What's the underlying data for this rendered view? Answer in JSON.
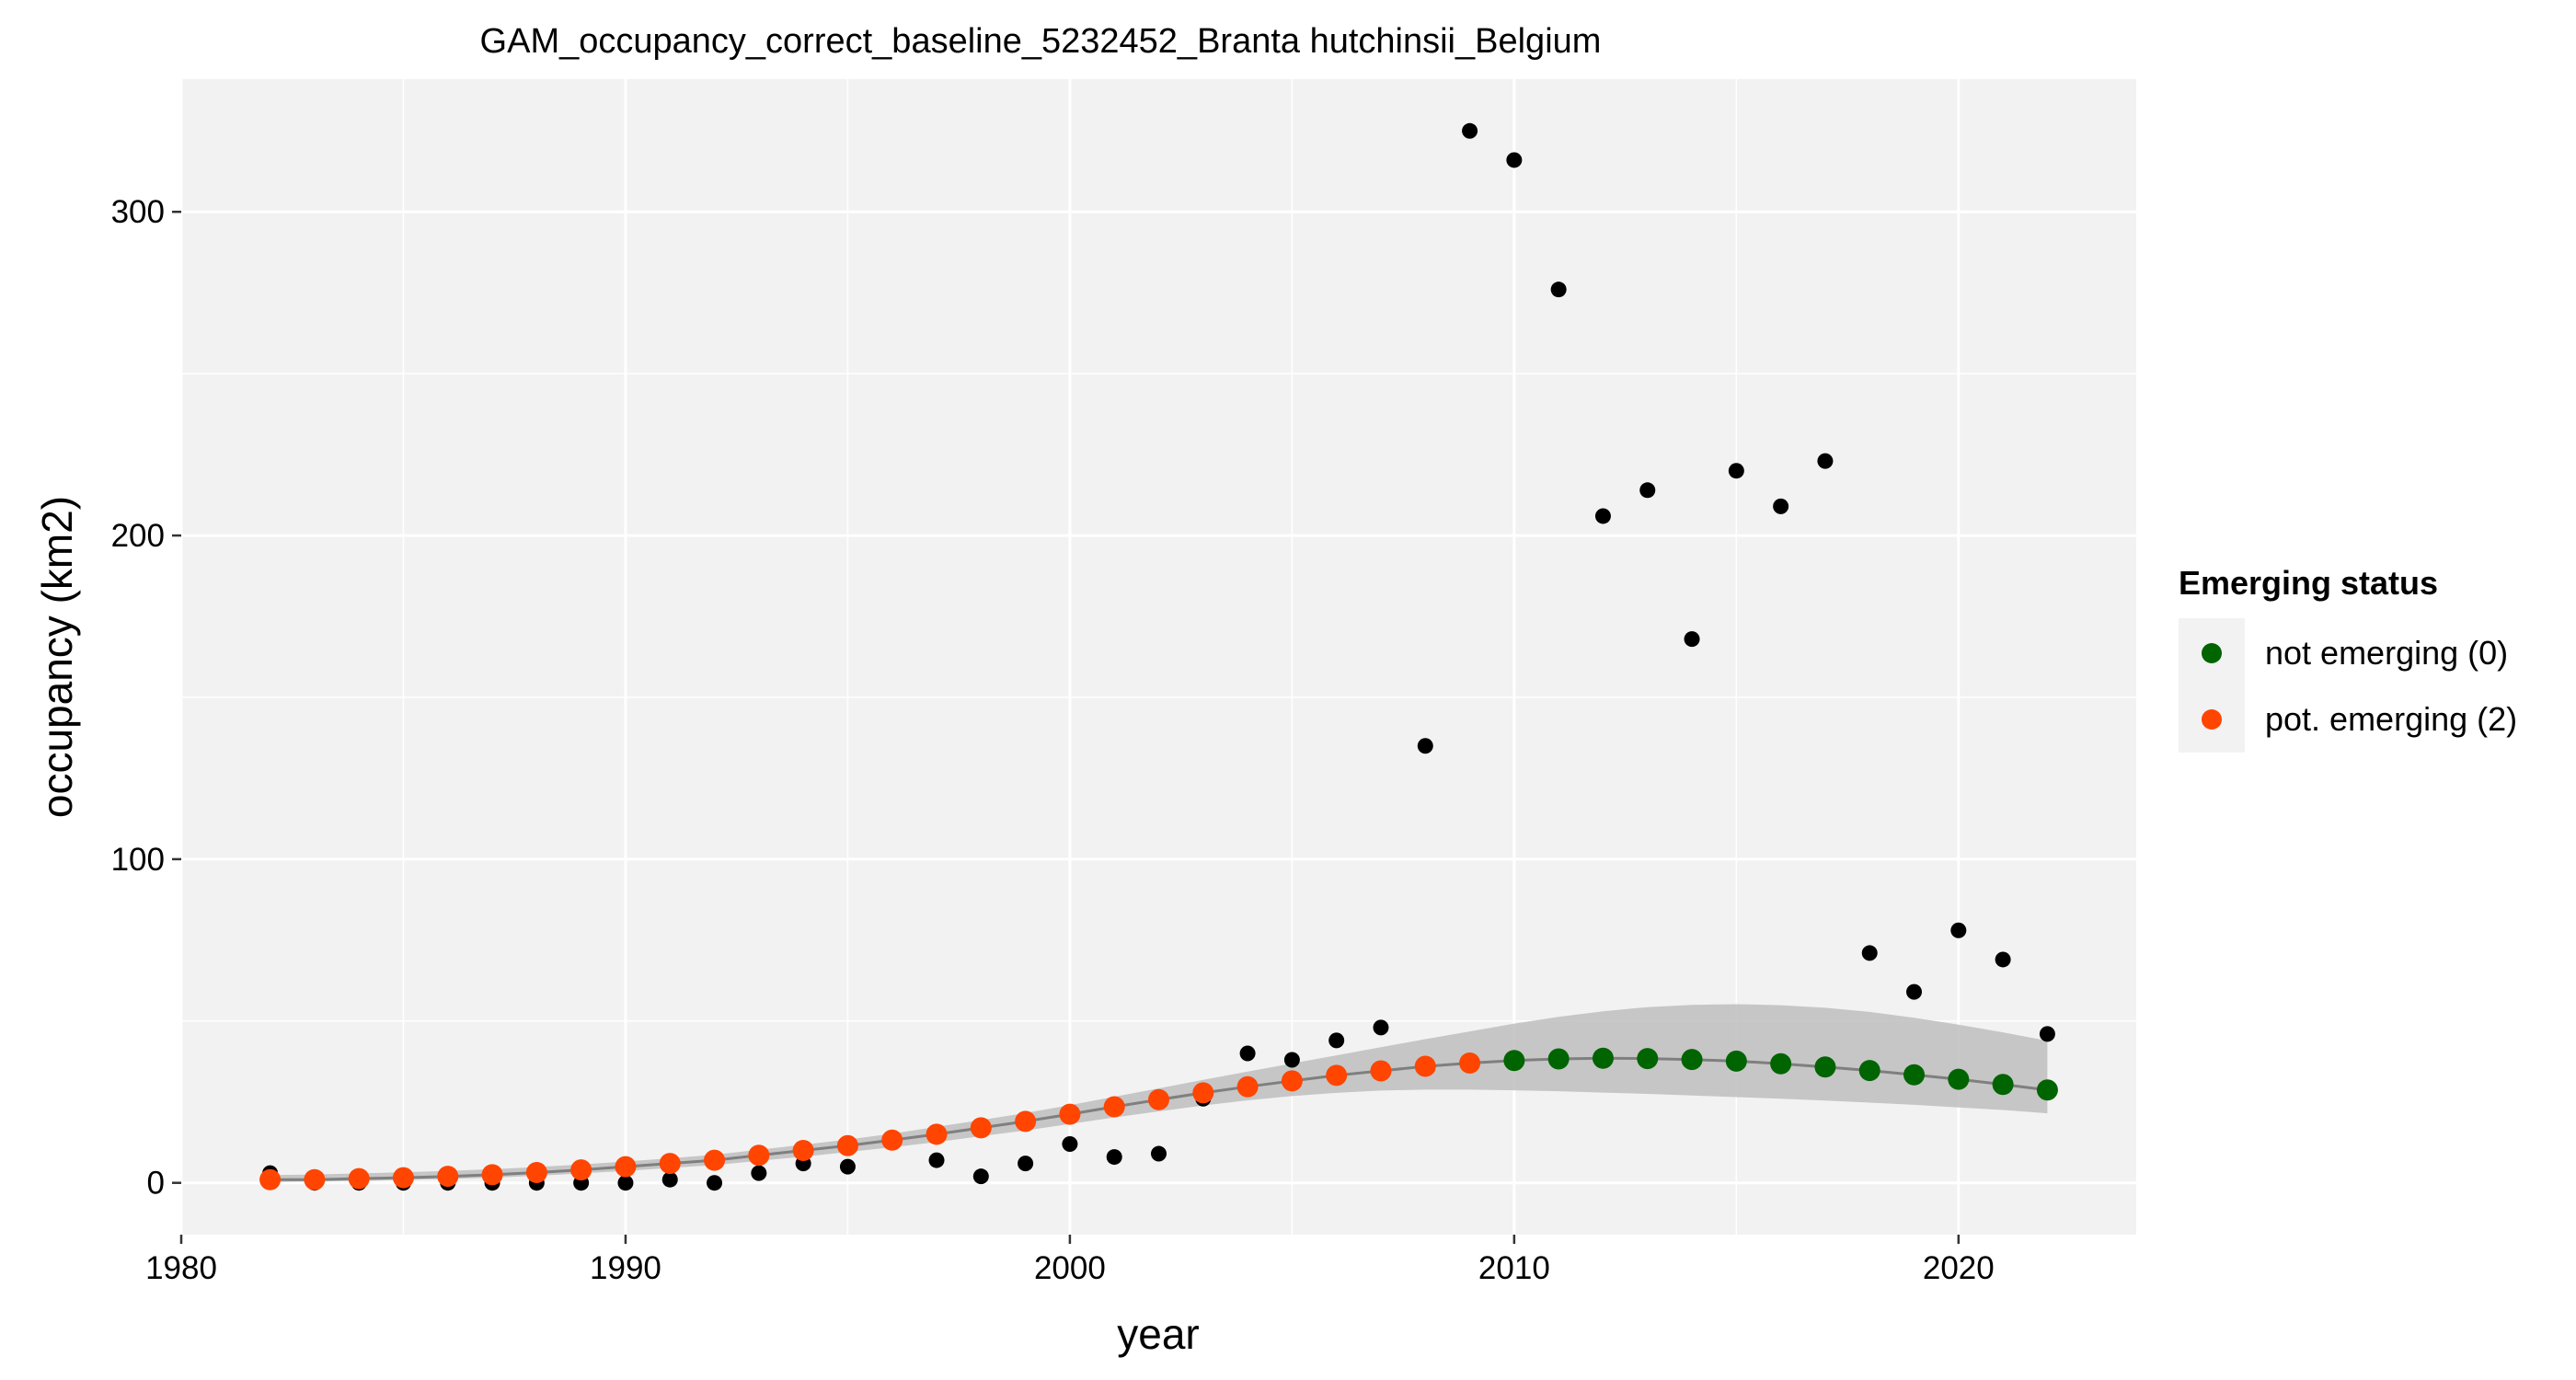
{
  "chart_data": {
    "type": "scatter",
    "title": "GAM_occupancy_correct_baseline_5232452_Branta hutchinsii_Belgium",
    "xlabel": "year",
    "ylabel": "occupancy (km2)",
    "xlim": [
      1980,
      2024
    ],
    "ylim": [
      -16,
      341
    ],
    "x_ticks": [
      1980,
      1990,
      2000,
      2010,
      2020
    ],
    "y_ticks": [
      0,
      100,
      200,
      300
    ],
    "grid": true,
    "legend": {
      "title": "Emerging status",
      "position": "right",
      "entries": [
        {
          "label": "not emerging (0)",
          "color": "#006400"
        },
        {
          "label": "pot. emerging (2)",
          "color": "#FF4500"
        }
      ]
    },
    "colors": {
      "panel": "#F2F2F2",
      "grid": "#FFFFFF",
      "observed": "#000000",
      "ribbon": "#BEBEBE",
      "fit_line": "#7F7F7F"
    },
    "observed": {
      "x": [
        1982,
        1983,
        1984,
        1985,
        1986,
        1987,
        1988,
        1989,
        1990,
        1991,
        1992,
        1993,
        1994,
        1995,
        1997,
        1998,
        1999,
        2000,
        2001,
        2002,
        2003,
        2004,
        2005,
        2006,
        2007,
        2008,
        2009,
        2010,
        2011,
        2012,
        2013,
        2014,
        2015,
        2016,
        2017,
        2018,
        2019,
        2020,
        2021,
        2022
      ],
      "y": [
        3,
        0,
        0,
        0,
        0,
        0,
        0,
        0,
        0,
        1,
        0,
        3,
        6,
        5,
        7,
        2,
        6,
        12,
        8,
        9,
        26,
        40,
        38,
        44,
        48,
        135,
        325,
        316,
        276,
        206,
        214,
        168,
        220,
        209,
        223,
        71,
        59,
        78,
        69,
        46
      ]
    },
    "fit": {
      "x": [
        1982,
        1983,
        1984,
        1985,
        1986,
        1987,
        1988,
        1989,
        1990,
        1991,
        1992,
        1993,
        1994,
        1995,
        1996,
        1997,
        1998,
        1999,
        2000,
        2001,
        2002,
        2003,
        2004,
        2005,
        2006,
        2007,
        2008,
        2009,
        2010,
        2011,
        2012,
        2013,
        2014,
        2015,
        2016,
        2017,
        2018,
        2019,
        2020,
        2021,
        2022
      ],
      "y": [
        1,
        1,
        1.3,
        1.6,
        2,
        2.5,
        3.2,
        4,
        5,
        6,
        7,
        8.5,
        10,
        11.5,
        13.2,
        15,
        17,
        19,
        21.2,
        23.5,
        25.7,
        27.8,
        29.7,
        31.5,
        33.2,
        34.6,
        36,
        37,
        37.8,
        38.3,
        38.5,
        38.4,
        38.1,
        37.6,
        36.8,
        35.8,
        34.7,
        33.4,
        32,
        30.4,
        28.7
      ],
      "lower": [
        0.3,
        0.4,
        0.6,
        0.9,
        1.2,
        1.6,
        2.2,
        2.9,
        3.7,
        4.6,
        5.5,
        6.8,
        8.1,
        9.5,
        11,
        12.6,
        14.4,
        16.2,
        18.2,
        20.2,
        22.1,
        23.9,
        25.5,
        26.8,
        27.8,
        28.5,
        28.8,
        28.8,
        28.6,
        28.3,
        27.9,
        27.5,
        27,
        26.5,
        26,
        25.4,
        24.8,
        24.1,
        23.3,
        22.5,
        21.5
      ],
      "upper": [
        2.4,
        2.6,
        2.9,
        3.3,
        3.7,
        4.2,
        4.9,
        5.7,
        6.6,
        7.6,
        8.7,
        10.2,
        11.8,
        13.4,
        15.2,
        17.3,
        19.4,
        21.6,
        24,
        26.6,
        29.2,
        31.8,
        34.4,
        36.9,
        39.4,
        41.9,
        44.4,
        46.8,
        49.2,
        51.3,
        53,
        54.3,
        55,
        55.2,
        54.9,
        54.1,
        52.8,
        51,
        48.9,
        46.5,
        43.9
      ],
      "status": [
        2,
        2,
        2,
        2,
        2,
        2,
        2,
        2,
        2,
        2,
        2,
        2,
        2,
        2,
        2,
        2,
        2,
        2,
        2,
        2,
        2,
        2,
        2,
        2,
        2,
        2,
        2,
        2,
        0,
        0,
        0,
        0,
        0,
        0,
        0,
        0,
        0,
        0,
        0,
        0,
        0
      ]
    }
  }
}
